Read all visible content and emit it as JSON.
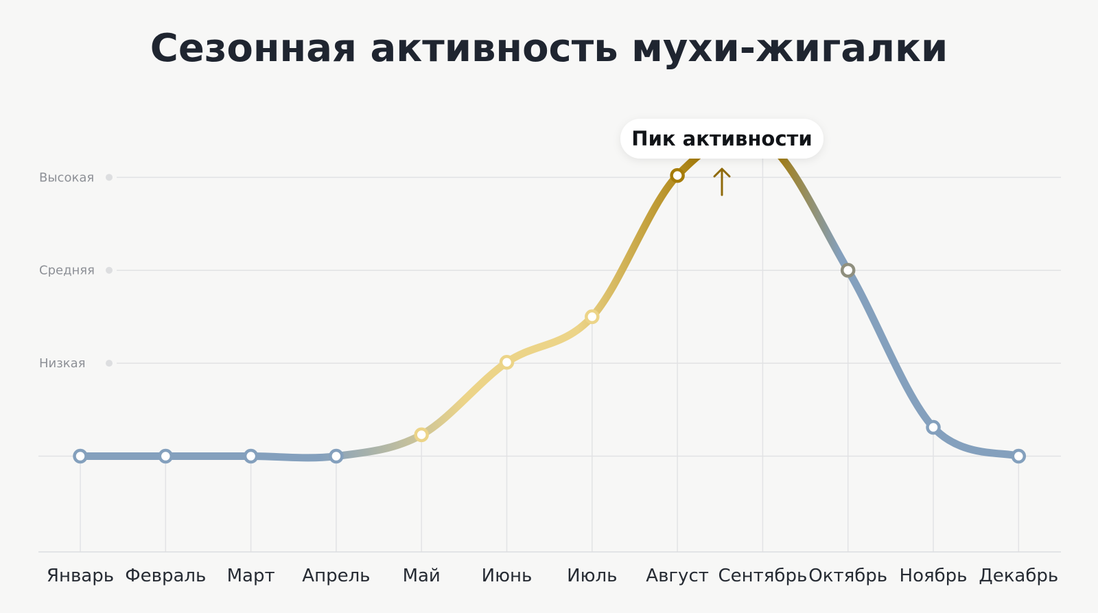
{
  "chart_data": {
    "type": "line",
    "title": "Сезонная активность мухи-жигалки",
    "xlabel": "",
    "ylabel": "",
    "categories": [
      "Январь",
      "Февраль",
      "Март",
      "Апрель",
      "Май",
      "Июнь",
      "Июль",
      "Август",
      "Сентябрь",
      "Октябрь",
      "Ноябрь",
      "Декабрь"
    ],
    "values": [
      0,
      0,
      0,
      0,
      0.23,
      1.01,
      1.5,
      3.02,
      3.4,
      2.0,
      0.31,
      0
    ],
    "ylim": [
      -1.03,
      3.8
    ],
    "y_levels": [
      {
        "label": "Низкая",
        "value": 1
      },
      {
        "label": "Средняя",
        "value": 2
      },
      {
        "label": "Высокая",
        "value": 3
      }
    ],
    "grid": true,
    "legend": "none",
    "annotation": {
      "text": "Пик активности",
      "month": "Сентябрь",
      "arrow": "up"
    },
    "colors": {
      "low": "#84a0bd",
      "mid": "#ecd488",
      "high": "#a67c09",
      "arrow": "#8f6a0a"
    }
  }
}
